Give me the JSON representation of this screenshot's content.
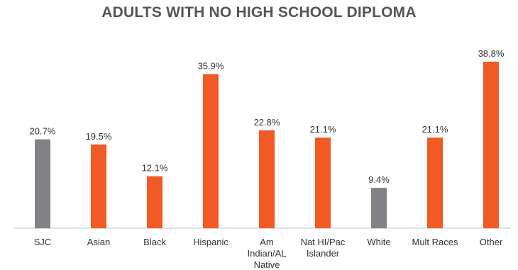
{
  "chart_data": {
    "type": "bar",
    "title": "ADULTS WITH NO HIGH SCHOOL DIPLOMA",
    "categories": [
      [
        "SJC"
      ],
      [
        "Asian"
      ],
      [
        "Black"
      ],
      [
        "Hispanic"
      ],
      [
        "Am",
        "Indian/AL",
        "Native"
      ],
      [
        "Nat HI/Pac",
        "Islander"
      ],
      [
        "White"
      ],
      [
        "Mult Races"
      ],
      [
        "Other"
      ]
    ],
    "values": [
      20.7,
      19.5,
      12.1,
      35.9,
      22.8,
      21.1,
      9.4,
      21.1,
      38.8
    ],
    "value_labels": [
      "20.7%",
      "19.5%",
      "12.1%",
      "35.9%",
      "22.8%",
      "21.1%",
      "9.4%",
      "21.1%",
      "38.8%"
    ],
    "bar_colors": [
      "#808285",
      "#f15a24",
      "#f15a24",
      "#f15a24",
      "#f15a24",
      "#f15a24",
      "#808285",
      "#f15a24",
      "#f15a24"
    ],
    "ylim": [
      0,
      40
    ],
    "grid": false,
    "legend": "none"
  }
}
